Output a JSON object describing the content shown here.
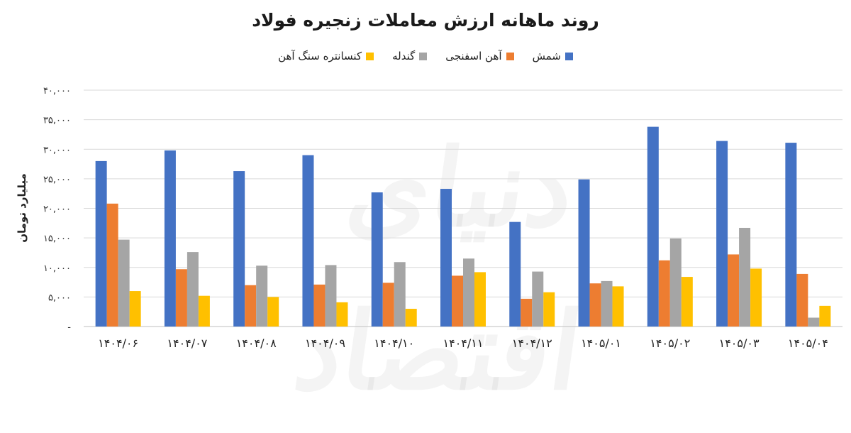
{
  "chart_data": {
    "type": "bar",
    "title": "روند ماهانه ارزش معاملات زنجیره فولاد",
    "ylabel": "میلیارد تومان",
    "ylim": [
      0,
      40000
    ],
    "yticks": [
      0,
      5000,
      10000,
      15000,
      20000,
      25000,
      30000,
      35000,
      40000
    ],
    "ytick_labels": [
      "-",
      "۵,۰۰۰",
      "۱۰,۰۰۰",
      "۱۵,۰۰۰",
      "۲۰,۰۰۰",
      "۲۵,۰۰۰",
      "۳۰,۰۰۰",
      "۳۵,۰۰۰",
      "۴۰,۰۰۰"
    ],
    "categories": [
      "۱۴۰۴/۰۶",
      "۱۴۰۴/۰۷",
      "۱۴۰۴/۰۸",
      "۱۴۰۴/۰۹",
      "۱۴۰۴/۱۰",
      "۱۴۰۴/۱۱",
      "۱۴۰۴/۱۲",
      "۱۴۰۵/۰۱",
      "۱۴۰۵/۰۲",
      "۱۴۰۵/۰۳",
      "۱۴۰۵/۰۴"
    ],
    "grid": true,
    "legend_position": "top",
    "series": [
      {
        "name": "شمش",
        "color": "#4472C4",
        "values": [
          28000,
          29800,
          26300,
          29000,
          22700,
          23300,
          17700,
          24900,
          33800,
          31400,
          31100
        ]
      },
      {
        "name": "آهن اسفنجی",
        "color": "#ED7D31",
        "values": [
          20800,
          9700,
          7000,
          7100,
          7400,
          8600,
          4700,
          7300,
          11200,
          12200,
          8900
        ]
      },
      {
        "name": "گندله",
        "color": "#A5A5A5",
        "values": [
          14700,
          12600,
          10300,
          10400,
          10900,
          11500,
          9300,
          7700,
          14900,
          16700,
          1500
        ]
      },
      {
        "name": "کنسانتره سنگ آهن",
        "color": "#FFC000",
        "values": [
          6000,
          5200,
          5000,
          4100,
          3000,
          9200,
          5800,
          6800,
          8400,
          9800,
          3500
        ]
      }
    ]
  }
}
